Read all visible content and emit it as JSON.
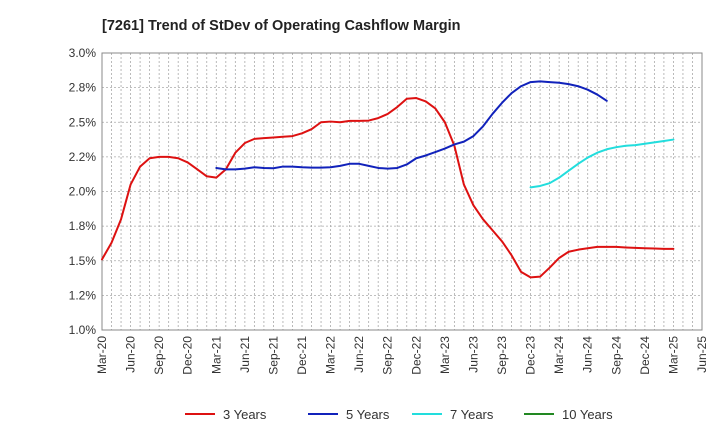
{
  "chart_data": {
    "type": "line",
    "title": "[7261]  Trend of StDev of Operating Cashflow Margin",
    "xlabel": "",
    "ylabel": "",
    "y_ticks": [
      "1.0%",
      "1.2%",
      "1.5%",
      "1.8%",
      "2.0%",
      "2.2%",
      "2.5%",
      "2.8%",
      "3.0%"
    ],
    "ylim": [
      1.0,
      3.0
    ],
    "x_ticks": [
      "Mar-20",
      "Jun-20",
      "Sep-20",
      "Dec-20",
      "Mar-21",
      "Jun-21",
      "Sep-21",
      "Dec-21",
      "Mar-22",
      "Jun-22",
      "Sep-22",
      "Dec-22",
      "Mar-23",
      "Jun-23",
      "Sep-23",
      "Dec-23",
      "Mar-24",
      "Jun-24",
      "Sep-24",
      "Dec-24",
      "Mar-25",
      "Jun-25"
    ],
    "grid": true,
    "legend_position": "bottom",
    "series": [
      {
        "name": "3 Years",
        "color": "#dd1111",
        "points": [
          [
            "Mar-20",
            1.51
          ],
          [
            "Apr-20",
            1.63
          ],
          [
            "May-20",
            1.8
          ],
          [
            "Jun-20",
            2.05
          ],
          [
            "Jul-20",
            2.18
          ],
          [
            "Aug-20",
            2.24
          ],
          [
            "Sep-20",
            2.25
          ],
          [
            "Oct-20",
            2.25
          ],
          [
            "Nov-20",
            2.24
          ],
          [
            "Dec-20",
            2.21
          ],
          [
            "Jan-21",
            2.16
          ],
          [
            "Feb-21",
            2.11
          ],
          [
            "Mar-21",
            2.1
          ],
          [
            "Apr-21",
            2.16
          ],
          [
            "May-21",
            2.28
          ],
          [
            "Jun-21",
            2.35
          ],
          [
            "Jul-21",
            2.38
          ],
          [
            "Aug-21",
            2.385
          ],
          [
            "Sep-21",
            2.39
          ],
          [
            "Oct-21",
            2.395
          ],
          [
            "Nov-21",
            2.4
          ],
          [
            "Dec-21",
            2.42
          ],
          [
            "Jan-22",
            2.45
          ],
          [
            "Feb-22",
            2.5
          ],
          [
            "Mar-22",
            2.505
          ],
          [
            "Apr-22",
            2.5
          ],
          [
            "May-22",
            2.51
          ],
          [
            "Jun-22",
            2.51
          ],
          [
            "Jul-22",
            2.512
          ],
          [
            "Aug-22",
            2.53
          ],
          [
            "Sep-22",
            2.56
          ],
          [
            "Oct-22",
            2.61
          ],
          [
            "Nov-22",
            2.67
          ],
          [
            "Dec-22",
            2.675
          ],
          [
            "Jan-23",
            2.65
          ],
          [
            "Feb-23",
            2.6
          ],
          [
            "Mar-23",
            2.5
          ],
          [
            "Apr-23",
            2.33
          ],
          [
            "May-23",
            2.05
          ],
          [
            "Jun-23",
            1.9
          ],
          [
            "Jul-23",
            1.8
          ],
          [
            "Aug-23",
            1.72
          ],
          [
            "Sep-23",
            1.64
          ],
          [
            "Oct-23",
            1.54
          ],
          [
            "Nov-23",
            1.42
          ],
          [
            "Dec-23",
            1.38
          ],
          [
            "Jan-24",
            1.385
          ],
          [
            "Feb-24",
            1.45
          ],
          [
            "Mar-24",
            1.52
          ],
          [
            "Apr-24",
            1.565
          ],
          [
            "May-24",
            1.58
          ],
          [
            "Jun-24",
            1.59
          ],
          [
            "Jul-24",
            1.6
          ],
          [
            "Aug-24",
            1.6
          ],
          [
            "Sep-24",
            1.6
          ],
          [
            "Oct-24",
            1.596
          ],
          [
            "Nov-24",
            1.593
          ],
          [
            "Dec-24",
            1.59
          ],
          [
            "Jan-25",
            1.588
          ],
          [
            "Feb-25",
            1.586
          ],
          [
            "Mar-25",
            1.586
          ]
        ]
      },
      {
        "name": "5 Years",
        "color": "#1122bb",
        "points": [
          [
            "Mar-21",
            2.17
          ],
          [
            "Apr-21",
            2.16
          ],
          [
            "May-21",
            2.16
          ],
          [
            "Jun-21",
            2.165
          ],
          [
            "Jul-21",
            2.175
          ],
          [
            "Aug-21",
            2.17
          ],
          [
            "Sep-21",
            2.168
          ],
          [
            "Oct-21",
            2.18
          ],
          [
            "Nov-21",
            2.18
          ],
          [
            "Dec-21",
            2.175
          ],
          [
            "Jan-22",
            2.172
          ],
          [
            "Feb-22",
            2.172
          ],
          [
            "Mar-22",
            2.175
          ],
          [
            "Apr-22",
            2.185
          ],
          [
            "May-22",
            2.2
          ],
          [
            "Jun-22",
            2.2
          ],
          [
            "Jul-22",
            2.185
          ],
          [
            "Aug-22",
            2.17
          ],
          [
            "Sep-22",
            2.165
          ],
          [
            "Oct-22",
            2.17
          ],
          [
            "Nov-22",
            2.195
          ],
          [
            "Dec-22",
            2.24
          ],
          [
            "Jan-23",
            2.26
          ],
          [
            "Feb-23",
            2.285
          ],
          [
            "Mar-23",
            2.31
          ],
          [
            "Apr-23",
            2.34
          ],
          [
            "May-23",
            2.36
          ],
          [
            "Jun-23",
            2.4
          ],
          [
            "Jul-23",
            2.47
          ],
          [
            "Aug-23",
            2.56
          ],
          [
            "Sep-23",
            2.64
          ],
          [
            "Oct-23",
            2.71
          ],
          [
            "Nov-23",
            2.76
          ],
          [
            "Dec-23",
            2.79
          ],
          [
            "Jan-24",
            2.795
          ],
          [
            "Feb-24",
            2.79
          ],
          [
            "Mar-24",
            2.785
          ],
          [
            "Apr-24",
            2.775
          ],
          [
            "May-24",
            2.76
          ],
          [
            "Jun-24",
            2.735
          ],
          [
            "Jul-24",
            2.7
          ],
          [
            "Aug-24",
            2.655
          ]
        ]
      },
      {
        "name": "7 Years",
        "color": "#22dddd",
        "points": [
          [
            "Dec-23",
            2.03
          ],
          [
            "Jan-24",
            2.04
          ],
          [
            "Feb-24",
            2.06
          ],
          [
            "Mar-24",
            2.1
          ],
          [
            "Apr-24",
            2.15
          ],
          [
            "May-24",
            2.2
          ],
          [
            "Jun-24",
            2.245
          ],
          [
            "Jul-24",
            2.28
          ],
          [
            "Aug-24",
            2.305
          ],
          [
            "Sep-24",
            2.32
          ],
          [
            "Oct-24",
            2.33
          ],
          [
            "Nov-24",
            2.335
          ],
          [
            "Dec-24",
            2.345
          ],
          [
            "Jan-25",
            2.355
          ],
          [
            "Feb-25",
            2.365
          ],
          [
            "Mar-25",
            2.375
          ]
        ]
      },
      {
        "name": "10 Years",
        "color": "#228822",
        "points": []
      }
    ]
  }
}
